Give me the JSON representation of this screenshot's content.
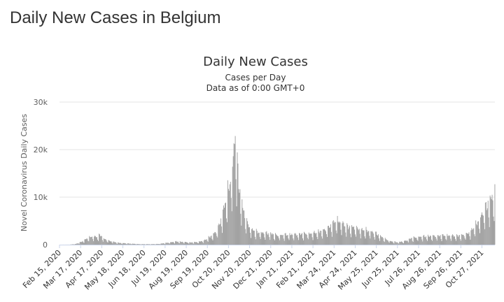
{
  "page": {
    "heading": "Daily New Cases in Belgium"
  },
  "chart_data": {
    "type": "bar",
    "title": "Daily New Cases",
    "subtitle": "Cases per Day",
    "subtitle2": "Data as of 0:00 GMT+0",
    "ylabel": "Novel Coronavirus Daily Cases",
    "xlabel": "",
    "ylim": [
      0,
      30000
    ],
    "yticks": [
      {
        "value": 0,
        "label": "0"
      },
      {
        "value": 10000,
        "label": "10k"
      },
      {
        "value": 20000,
        "label": "20k"
      },
      {
        "value": 30000,
        "label": "30k"
      }
    ],
    "grid": true,
    "legend": "none",
    "bar_color": "#999999",
    "x_start": "2020-02-15",
    "x_end": "2021-11-15",
    "xticks": [
      {
        "date": "2020-02-15",
        "label": "Feb 15, 2020"
      },
      {
        "date": "2020-03-17",
        "label": "Mar 17, 2020"
      },
      {
        "date": "2020-04-17",
        "label": "Apr 17, 2020"
      },
      {
        "date": "2020-05-18",
        "label": "May 18, 2020"
      },
      {
        "date": "2020-06-18",
        "label": "Jun 18, 2020"
      },
      {
        "date": "2020-07-19",
        "label": "Jul 19, 2020"
      },
      {
        "date": "2020-08-19",
        "label": "Aug 19, 2020"
      },
      {
        "date": "2020-09-19",
        "label": "Sep 19, 2020"
      },
      {
        "date": "2020-10-20",
        "label": "Oct 20, 2020"
      },
      {
        "date": "2020-11-20",
        "label": "Nov 20, 2020"
      },
      {
        "date": "2020-12-21",
        "label": "Dec 21, 2020"
      },
      {
        "date": "2021-01-21",
        "label": "Jan 21, 2021"
      },
      {
        "date": "2021-02-21",
        "label": "Feb 21, 2021"
      },
      {
        "date": "2021-03-24",
        "label": "Mar 24, 2021"
      },
      {
        "date": "2021-04-24",
        "label": "Apr 24, 2021"
      },
      {
        "date": "2021-05-25",
        "label": "May 25, 2021"
      },
      {
        "date": "2021-06-25",
        "label": "Jun 25, 2021"
      },
      {
        "date": "2021-07-26",
        "label": "Jul 26, 2021"
      },
      {
        "date": "2021-08-26",
        "label": "Aug 26, 2021"
      },
      {
        "date": "2021-09-26",
        "label": "Sep 26, 2021"
      },
      {
        "date": "2021-10-27",
        "label": "Oct 27, 2021"
      }
    ],
    "series": [
      {
        "values": [
          {
            "date": "2020-02-15",
            "value": 0
          },
          {
            "date": "2020-03-01",
            "value": 10
          },
          {
            "date": "2020-03-10",
            "value": 150
          },
          {
            "date": "2020-03-20",
            "value": 700
          },
          {
            "date": "2020-03-28",
            "value": 1400
          },
          {
            "date": "2020-04-03",
            "value": 1700
          },
          {
            "date": "2020-04-10",
            "value": 1600
          },
          {
            "date": "2020-04-15",
            "value": 2000
          },
          {
            "date": "2020-04-20",
            "value": 1200
          },
          {
            "date": "2020-04-28",
            "value": 800
          },
          {
            "date": "2020-05-10",
            "value": 400
          },
          {
            "date": "2020-05-25",
            "value": 250
          },
          {
            "date": "2020-06-10",
            "value": 120
          },
          {
            "date": "2020-06-25",
            "value": 100
          },
          {
            "date": "2020-07-10",
            "value": 150
          },
          {
            "date": "2020-07-25",
            "value": 450
          },
          {
            "date": "2020-08-05",
            "value": 650
          },
          {
            "date": "2020-08-15",
            "value": 550
          },
          {
            "date": "2020-08-25",
            "value": 450
          },
          {
            "date": "2020-09-05",
            "value": 550
          },
          {
            "date": "2020-09-15",
            "value": 900
          },
          {
            "date": "2020-09-25",
            "value": 1800
          },
          {
            "date": "2020-10-03",
            "value": 2800
          },
          {
            "date": "2020-10-10",
            "value": 5500
          },
          {
            "date": "2020-10-17",
            "value": 9500
          },
          {
            "date": "2020-10-22",
            "value": 12500
          },
          {
            "date": "2020-10-27",
            "value": 17000
          },
          {
            "date": "2020-10-30",
            "value": 23800
          },
          {
            "date": "2020-11-02",
            "value": 16000
          },
          {
            "date": "2020-11-05",
            "value": 11500
          },
          {
            "date": "2020-11-10",
            "value": 7500
          },
          {
            "date": "2020-11-15",
            "value": 5000
          },
          {
            "date": "2020-11-22",
            "value": 3200
          },
          {
            "date": "2020-11-30",
            "value": 2600
          },
          {
            "date": "2020-12-10",
            "value": 2400
          },
          {
            "date": "2020-12-20",
            "value": 2300
          },
          {
            "date": "2020-12-31",
            "value": 1900
          },
          {
            "date": "2021-01-10",
            "value": 2000
          },
          {
            "date": "2021-01-25",
            "value": 2100
          },
          {
            "date": "2021-02-05",
            "value": 2200
          },
          {
            "date": "2021-02-20",
            "value": 2300
          },
          {
            "date": "2021-03-01",
            "value": 2600
          },
          {
            "date": "2021-03-10",
            "value": 3000
          },
          {
            "date": "2021-03-20",
            "value": 4000
          },
          {
            "date": "2021-03-27",
            "value": 5000
          },
          {
            "date": "2021-04-03",
            "value": 4600
          },
          {
            "date": "2021-04-12",
            "value": 3700
          },
          {
            "date": "2021-04-24",
            "value": 3500
          },
          {
            "date": "2021-05-05",
            "value": 3000
          },
          {
            "date": "2021-05-15",
            "value": 2800
          },
          {
            "date": "2021-05-25",
            "value": 2300
          },
          {
            "date": "2021-06-05",
            "value": 1300
          },
          {
            "date": "2021-06-15",
            "value": 700
          },
          {
            "date": "2021-06-25",
            "value": 500
          },
          {
            "date": "2021-07-05",
            "value": 700
          },
          {
            "date": "2021-07-15",
            "value": 1300
          },
          {
            "date": "2021-07-26",
            "value": 1600
          },
          {
            "date": "2021-08-05",
            "value": 1700
          },
          {
            "date": "2021-08-20",
            "value": 1800
          },
          {
            "date": "2021-09-05",
            "value": 1900
          },
          {
            "date": "2021-09-20",
            "value": 1800
          },
          {
            "date": "2021-10-01",
            "value": 2000
          },
          {
            "date": "2021-10-10",
            "value": 2600
          },
          {
            "date": "2021-10-18",
            "value": 4000
          },
          {
            "date": "2021-10-25",
            "value": 5500
          },
          {
            "date": "2021-11-01",
            "value": 7500
          },
          {
            "date": "2021-11-08",
            "value": 9000
          },
          {
            "date": "2021-11-15",
            "value": 10500
          }
        ]
      }
    ]
  }
}
